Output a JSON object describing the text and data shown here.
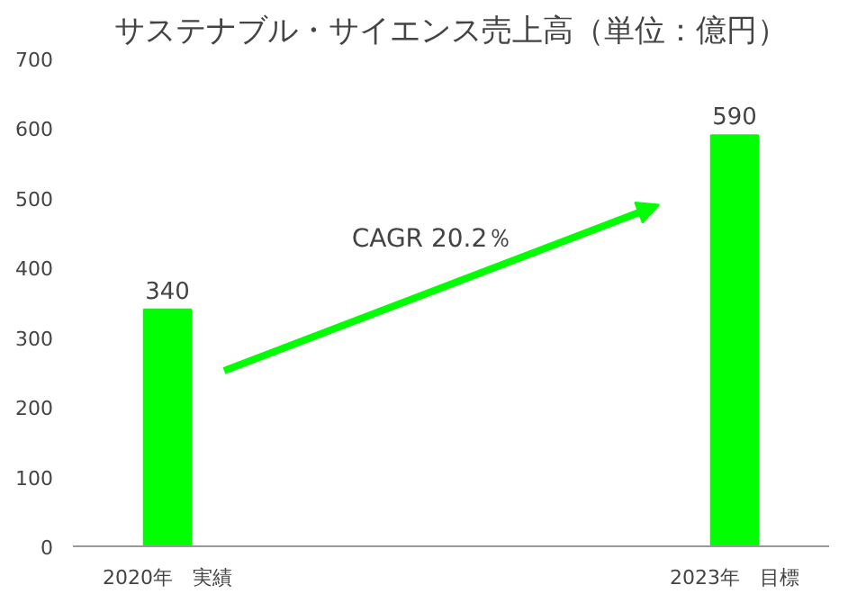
{
  "chart_data": {
    "type": "bar",
    "title": "サステナブル・サイエンス売上高（単位：億円）",
    "categories": [
      "2020年　実績",
      null,
      null,
      "2023年　目標"
    ],
    "values": [
      340,
      null,
      null,
      590
    ],
    "color": "#00ff00",
    "ylim": [
      0,
      700
    ],
    "yticks": [
      0,
      100,
      200,
      300,
      400,
      500,
      600,
      700
    ],
    "data_labels": true,
    "grid": false,
    "annotations": [
      "CAGR 20.2％"
    ]
  }
}
